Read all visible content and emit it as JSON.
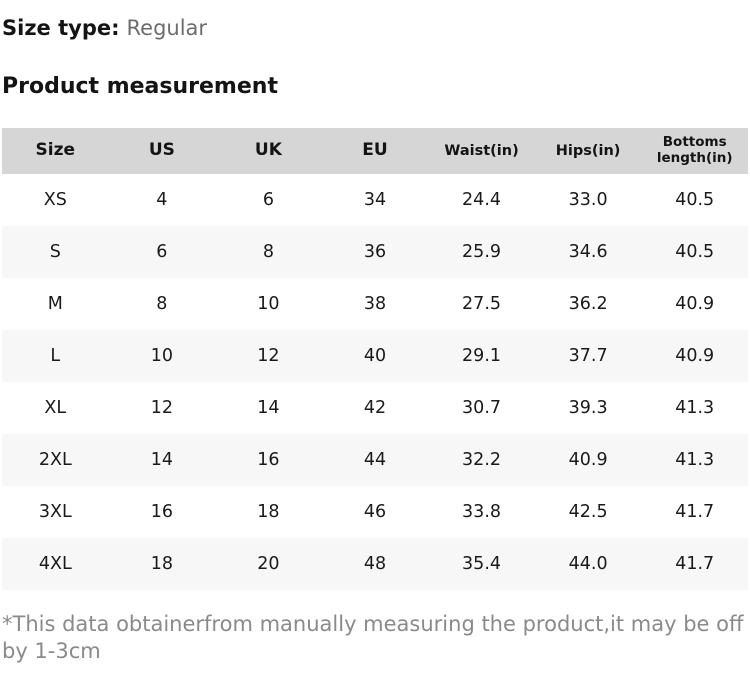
{
  "page": {
    "size_type_label": "Size type:",
    "size_type_value": "Regular",
    "section_title": "Product measurement",
    "footnote": "*This data obtainerfrom manually measuring the product,it may be off by 1-3cm"
  },
  "table": {
    "columns": [
      {
        "key": "size",
        "label": "Size"
      },
      {
        "key": "us",
        "label": "US"
      },
      {
        "key": "uk",
        "label": "UK"
      },
      {
        "key": "eu",
        "label": "EU"
      },
      {
        "key": "waist_in",
        "label": "Waist(in)"
      },
      {
        "key": "hips_in",
        "label": "Hips(in)"
      },
      {
        "key": "bottoms_length_in",
        "label": "Bottoms length(in)"
      }
    ],
    "rows": [
      [
        "XS",
        "4",
        "6",
        "34",
        "24.4",
        "33.0",
        "40.5"
      ],
      [
        "S",
        "6",
        "8",
        "36",
        "25.9",
        "34.6",
        "40.5"
      ],
      [
        "M",
        "8",
        "10",
        "38",
        "27.5",
        "36.2",
        "40.9"
      ],
      [
        "L",
        "10",
        "12",
        "40",
        "29.1",
        "37.7",
        "40.9"
      ],
      [
        "XL",
        "12",
        "14",
        "42",
        "30.7",
        "39.3",
        "41.3"
      ],
      [
        "2XL",
        "14",
        "16",
        "44",
        "32.2",
        "40.9",
        "41.3"
      ],
      [
        "3XL",
        "16",
        "18",
        "46",
        "33.8",
        "42.5",
        "41.7"
      ],
      [
        "4XL",
        "18",
        "20",
        "48",
        "35.4",
        "44.0",
        "41.7"
      ]
    ]
  },
  "colors": {
    "header_bg": "#d6d6d6",
    "row_alt_bg": "#f7f7f7",
    "text_primary": "#141414",
    "text_muted": "#6d6d6d",
    "footnote_gray": "#8a8a8a"
  }
}
